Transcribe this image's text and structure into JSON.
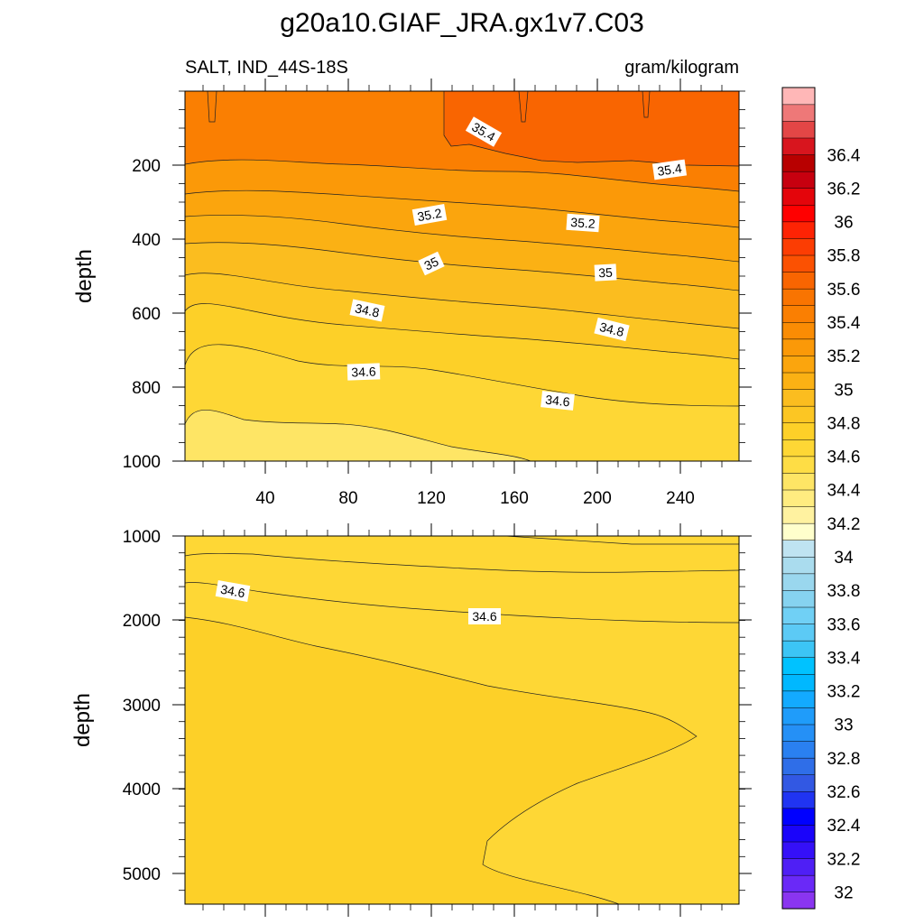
{
  "chart_data": {
    "type": "contour",
    "title": "g20a10.GIAF_JRA.gx1v7.C03",
    "variable_label": "SALT, IND_44S-18S",
    "units_label": "gram/kilogram",
    "colorbar": {
      "levels": [
        32.0,
        32.1,
        32.2,
        32.3,
        32.4,
        32.5,
        32.6,
        32.7,
        32.8,
        32.9,
        33.0,
        33.1,
        33.2,
        33.3,
        33.4,
        33.5,
        33.6,
        33.7,
        33.8,
        33.9,
        34.0,
        34.1,
        34.2,
        34.3,
        34.4,
        34.5,
        34.6,
        34.7,
        34.8,
        34.9,
        35.0,
        35.1,
        35.2,
        35.3,
        35.4,
        35.5,
        35.6,
        35.7,
        35.8,
        35.9,
        36.0,
        36.1,
        36.2,
        36.3,
        36.4,
        36.5
      ],
      "colors": [
        "#8a35f0",
        "#6a29f7",
        "#4f1ff5",
        "#3510f8",
        "#1a04fa",
        "#0000ff",
        "#2034f2",
        "#3258e3",
        "#2f6ee8",
        "#2a80f0",
        "#2590f6",
        "#1f9cfa",
        "#13aaff",
        "#00b8ff",
        "#00c2ff",
        "#3cc5f5",
        "#5ccaf5",
        "#70d0f5",
        "#86d3f0",
        "#9ad7ee",
        "#aadcee",
        "#bfe3f1",
        "#ffffcc",
        "#fff2a0",
        "#ffec80",
        "#fee565",
        "#fedd45",
        "#fed735",
        "#fdd028",
        "#fcc623",
        "#fbbd1f",
        "#fbb114",
        "#fba50d",
        "#fb9908",
        "#fa8c04",
        "#fa7f02",
        "#f97401",
        "#f96501",
        "#fb5102",
        "#fc3d03",
        "#fe2304",
        "#ff0000",
        "#e4050b",
        "#c7000f",
        "#b80000",
        "#d8151e",
        "#e34646",
        "#ee7878",
        "#ffb7b7"
      ],
      "tick_labels": [
        "32",
        "32.2",
        "32.4",
        "32.6",
        "32.8",
        "33",
        "33.2",
        "33.4",
        "33.6",
        "33.8",
        "34",
        "34.2",
        "34.4",
        "34.6",
        "34.8",
        "35",
        "35.2",
        "35.4",
        "35.6",
        "35.8",
        "36",
        "36.2",
        "36.4"
      ]
    },
    "panels": [
      {
        "x_ticks": [
          "40",
          "80",
          "120",
          "160",
          "200",
          "240"
        ],
        "x_range": [
          0,
          270
        ],
        "y_ticks": [
          "200",
          "400",
          "600",
          "800",
          "1000"
        ],
        "y_range": [
          0,
          1000
        ],
        "ylabel": "depth",
        "contour_labels": [
          "35.4",
          "35.4",
          "35.2",
          "35.2",
          "35",
          "35",
          "34.8",
          "34.8",
          "34.6",
          "34.6"
        ]
      },
      {
        "y_ticks": [
          "1000",
          "2000",
          "3000",
          "4000",
          "5000"
        ],
        "y_range": [
          1000,
          5375
        ],
        "ylabel": "depth",
        "contour_labels": [
          "34.6",
          "34.6"
        ]
      }
    ]
  }
}
